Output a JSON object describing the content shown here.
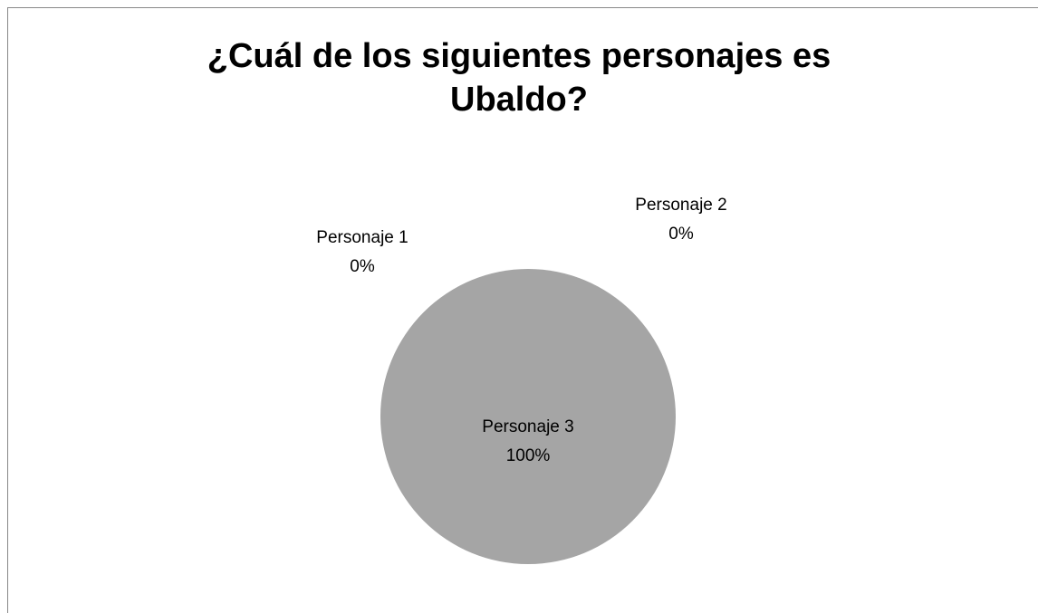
{
  "chart_data": {
    "type": "pie",
    "title": "¿Cuál de los siguientes personajes es Ubaldo?",
    "categories": [
      "Personaje 1",
      "Personaje 2",
      "Personaje 3"
    ],
    "values": [
      0,
      0,
      100
    ],
    "value_labels": [
      "0%",
      "0%",
      "100%"
    ],
    "colors": [
      "#7f7f7f",
      "#d9d9d9",
      "#a5a5a5"
    ]
  }
}
